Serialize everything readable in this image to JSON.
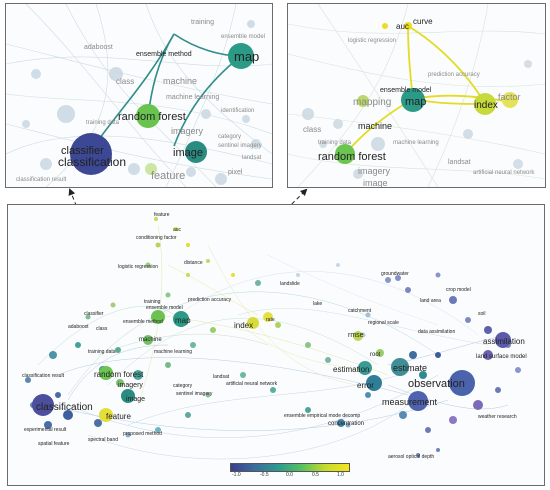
{
  "panel_a": {
    "labels": {
      "map": "map",
      "ensemble_method": "ensemble method",
      "random_forest": "random forest",
      "image": "image",
      "classifier": "classifier",
      "classification": "classification",
      "machine": "machine",
      "machine_learning": "machine learning",
      "imagery": "imagery",
      "feature": "feature",
      "class": "class",
      "training": "training",
      "adaboost": "adaboost",
      "ensemble_model": "ensemble model",
      "category": "category",
      "landsat": "landsat",
      "pixel": "pixel",
      "classification_result": "classification result",
      "training_data": "training data",
      "identification": "identification",
      "sentinel_imagery": "sentinel imagery"
    }
  },
  "panel_b": {
    "labels": {
      "auc": "auc",
      "curve": "curve",
      "ensemble_model": "ensemble model",
      "mapping": "mapping",
      "map": "map",
      "index": "index",
      "factor": "factor",
      "machine": "machine",
      "random_forest": "random forest",
      "imagery": "imagery",
      "image": "image",
      "class": "class",
      "prediction_accuracy": "prediction accuracy",
      "logistic_regression": "logistic regression",
      "landsat": "landsat",
      "machine_learning": "machine learning",
      "artificial_neural_network": "artificial neural network",
      "training_data": "training data"
    }
  },
  "main": {
    "labels": {
      "feature": "feature",
      "conditioning_factor": "conditioning factor",
      "logistic_regression": "logistic regression",
      "prediction_accuracy": "prediction accuracy",
      "ensemble_model": "ensemble model",
      "ensemble_method": "ensemble method",
      "map": "map",
      "index": "index",
      "rate": "rate",
      "rmse": "rmse",
      "root": "root",
      "estimate": "estimate",
      "estimation": "estimation",
      "error": "error",
      "observation": "observation",
      "measurement": "measurement",
      "assimilation": "assimilation",
      "land_surface_model": "land surface model",
      "machine": "machine",
      "machine_learning": "machine learning",
      "random_forest": "random forest",
      "imagery": "imagery",
      "image": "image",
      "classification": "classification",
      "classification_result": "classification result",
      "experimental_result": "experimental result",
      "spectral_band": "spectral band",
      "proposed_method": "proposed method",
      "training_data": "training data",
      "landsat": "landsat",
      "artificial_neural_network": "artificial neural network",
      "concentration": "concentration",
      "ensemble_empirical_mode_decomp": "ensemble empirical mode decomp",
      "aerosol_optical_depth": "aerosol optical depth",
      "catchment": "catchment",
      "regional_scale": "regional scale",
      "data_assimilation": "data assimilation",
      "weather_research": "weather research",
      "groundwater": "groundwater",
      "land_area": "land area",
      "crop_model": "crop model",
      "soil": "soil",
      "adaboost": "adaboost",
      "class": "class",
      "spatial_feature": "spatial feature",
      "category": "category",
      "sentinel_imagery": "sentinel imagery",
      "auc": "auc",
      "distance": "distance",
      "lake": "lake",
      "landslide": "landslide",
      "classifier": "classifier",
      "training": "training"
    }
  },
  "colorbar": {
    "ticks": [
      "-1.0",
      "-0.5",
      "0.0",
      "0.5",
      "1.0"
    ],
    "colors": [
      "#3b3f8c",
      "#3c6b9e",
      "#2c9a8f",
      "#57c05f",
      "#c5dc2d",
      "#f7e51e"
    ]
  }
}
